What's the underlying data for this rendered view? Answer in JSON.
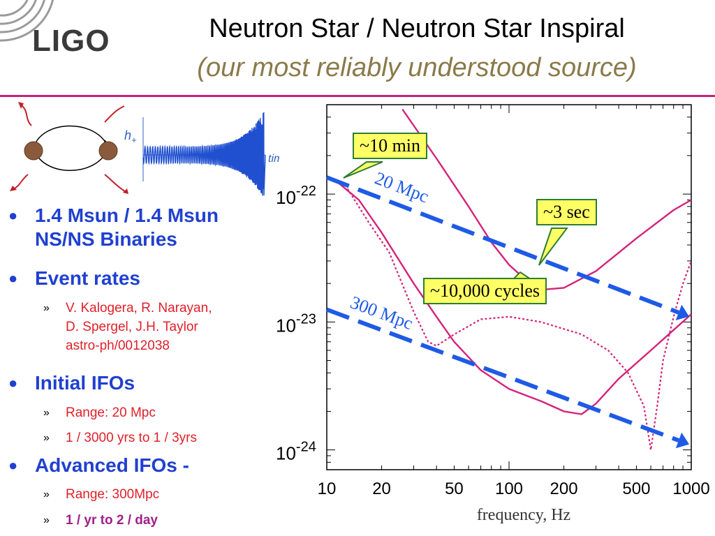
{
  "header": {
    "logo_text": "LIGO",
    "title": "Neutron Star / Neutron Star Inspiral",
    "subtitle": "(our most reliably understood source)"
  },
  "diagram": {
    "h_label": "h",
    "h_sub": "+",
    "time_label": "time"
  },
  "bullets": [
    {
      "text_lines": [
        "1.4 Msun / 1.4 Msun",
        "NS/NS Binaries"
      ],
      "sub": []
    },
    {
      "text_lines": [
        "Event rates"
      ],
      "sub": [
        {
          "lines": [
            "V. Kalogera, R. Narayan,",
            "D. Spergel, J.H. Taylor",
            "astro-ph/0012038"
          ]
        }
      ]
    },
    {
      "text_lines": [
        "Initial IFOs"
      ],
      "sub": [
        {
          "lines": [
            "Range: 20 Mpc"
          ]
        },
        {
          "lines": [
            "1 / 3000 yrs  to  1 / 3yrs"
          ]
        }
      ]
    },
    {
      "text_lines": [
        "Advanced IFOs -"
      ],
      "sub": [
        {
          "lines": [
            "Range: 300Mpc"
          ]
        },
        {
          "lines": [
            "1 / yr  to  2 / day"
          ]
        }
      ]
    }
  ],
  "chart_data": {
    "type": "line",
    "xlabel": "frequency, Hz",
    "x_scale": "log",
    "y_scale": "log",
    "xlim": [
      10,
      1000
    ],
    "ylim": [
      7e-25,
      5e-22
    ],
    "x_ticks": [
      "10",
      "20",
      "50",
      "100",
      "200",
      "500",
      "1000"
    ],
    "y_ticks": [
      {
        "base": "10",
        "exp": "-22",
        "value": 1e-22
      },
      {
        "base": "10",
        "exp": "-23",
        "value": 1e-23
      },
      {
        "base": "10",
        "exp": "-24",
        "value": 1e-24
      }
    ],
    "series": [
      {
        "style": "solid",
        "color": "#d4237a",
        "x": [
          26,
          40,
          60,
          80,
          100,
          130,
          160,
          200,
          300,
          500,
          800,
          1000
        ],
        "y": [
          4.6e-22,
          1.9e-22,
          8e-23,
          4.2e-23,
          2.8e-23,
          2e-23,
          1.8e-23,
          1.85e-23,
          2.5e-23,
          4.5e-23,
          7.5e-23,
          9e-23
        ]
      },
      {
        "style": "solid",
        "color": "#d4237a",
        "x": [
          11,
          15,
          20,
          30,
          40,
          50,
          70,
          100,
          150,
          200,
          250,
          300,
          400,
          600,
          1000
        ],
        "y": [
          1.3e-22,
          9e-23,
          5e-23,
          2e-23,
          1.1e-23,
          7e-24,
          4.2e-24,
          3e-24,
          2.4e-24,
          2e-24,
          1.9e-24,
          2.3e-24,
          3.6e-24,
          6e-24,
          1.15e-23
        ]
      },
      {
        "style": "dotted",
        "color": "#d4237a",
        "x": [
          13,
          17,
          22,
          30,
          36,
          40,
          50,
          70,
          100,
          150,
          250,
          350,
          450,
          550,
          600,
          650,
          700,
          800,
          900,
          1000
        ],
        "y": [
          1.1e-22,
          6e-23,
          3.5e-23,
          1.2e-23,
          7e-24,
          6.5e-24,
          8e-24,
          1.05e-23,
          1.1e-23,
          1e-23,
          8e-24,
          6e-24,
          4e-24,
          2.2e-24,
          1e-24,
          2.2e-24,
          5e-24,
          1.1e-23,
          2e-23,
          3e-23
        ]
      }
    ],
    "range_lines": [
      {
        "label": "20 Mpc",
        "x": [
          10,
          1000
        ],
        "y": [
          1.35e-22,
          1.1e-23
        ],
        "color": "#1e5ae6"
      },
      {
        "label": "300 Mpc",
        "x": [
          10,
          1000
        ],
        "y": [
          1.25e-23,
          1.1e-24
        ],
        "color": "#1e5ae6"
      }
    ]
  },
  "callouts": [
    {
      "text": "~10 min"
    },
    {
      "text": "~3 sec"
    },
    {
      "text": "~10,000 cycles"
    }
  ]
}
